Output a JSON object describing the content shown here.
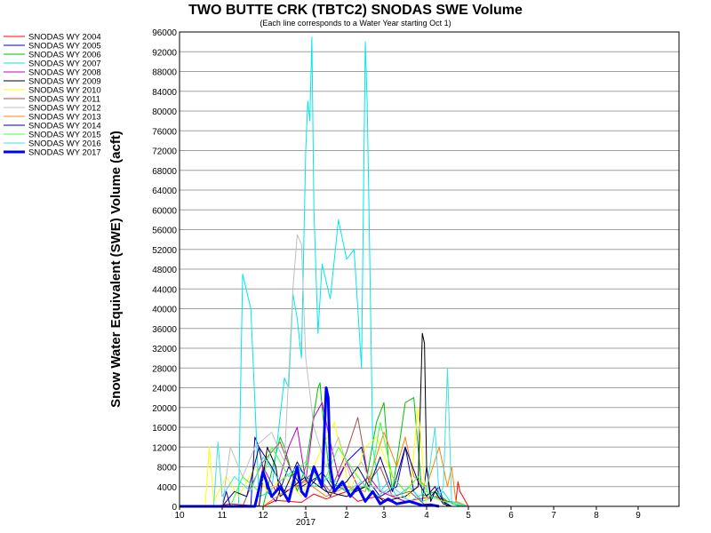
{
  "chart_data": {
    "type": "line",
    "title": "TWO BUTTE CRK (TBTC2) SNODAS SWE Volume",
    "subtitle": "(Each line corresponds to a Water Year starting Oct 1)",
    "ylabel": "Snow Water Equivalent (SWE) Volume (acft)",
    "xlabel": "",
    "ylim": [
      0,
      96000
    ],
    "yticks": [
      "0",
      "4000",
      "8000",
      "12000",
      "16000",
      "20000",
      "24000",
      "28000",
      "32000",
      "36000",
      "40000",
      "44000",
      "48000",
      "52000",
      "56000",
      "60000",
      "64000",
      "68000",
      "72000",
      "76000",
      "80000",
      "84000",
      "88000",
      "92000",
      "96000"
    ],
    "xticks": [
      "10",
      "11",
      "12",
      "1",
      "2",
      "3",
      "4",
      "5",
      "6",
      "7",
      "8",
      "9"
    ],
    "x_year_label": "2017",
    "grid": true,
    "legend_position": "left",
    "series": [
      {
        "name": "SNODAS WY 2004",
        "color": "#ff0000",
        "x": [
          10.0,
          10.8,
          11.2,
          12.0,
          12.3,
          12.9,
          1.2,
          1.5,
          2.0,
          2.3,
          2.8,
          3.3,
          3.8,
          4.2,
          4.5,
          4.7,
          4.75,
          4.8,
          5.0
        ],
        "y": [
          0,
          0,
          500,
          0,
          1200,
          800,
          2500,
          1500,
          3000,
          1000,
          2000,
          500,
          1500,
          2000,
          1000,
          800,
          5000,
          3000,
          0
        ]
      },
      {
        "name": "SNODAS WY 2005",
        "color": "#0000c0",
        "x": [
          10.0,
          11.0,
          11.1,
          11.2,
          11.7,
          11.8,
          11.9,
          12.1,
          12.3,
          12.6,
          12.9,
          1.3,
          1.6,
          2.0,
          2.4,
          2.6,
          2.9,
          3.3,
          3.5,
          3.7,
          3.9,
          4.0,
          4.1,
          4.3,
          4.4,
          4.5
        ],
        "y": [
          0,
          0,
          3000,
          0,
          0,
          14000,
          12000,
          3000,
          1000,
          8000,
          4000,
          6000,
          2000,
          9000,
          12000,
          5000,
          2000,
          4000,
          12000,
          3000,
          1000,
          8000,
          2000,
          4000,
          1000,
          0
        ]
      },
      {
        "name": "SNODAS WY 2006",
        "color": "#00c000",
        "x": [
          10.0,
          12.0,
          12.4,
          12.5,
          12.8,
          1.0,
          1.3,
          1.35,
          1.4,
          1.6,
          2.0,
          2.5,
          2.8,
          3.0,
          3.1,
          3.2,
          3.5,
          3.7,
          3.8,
          3.9,
          4.2,
          4.5,
          4.8
        ],
        "y": [
          0,
          0,
          14000,
          12000,
          3000,
          8000,
          24000,
          25000,
          20000,
          5000,
          3000,
          4000,
          17000,
          21000,
          10000,
          3000,
          21000,
          22000,
          12000,
          2000,
          3000,
          1000,
          0
        ]
      },
      {
        "name": "SNODAS WY 2007",
        "color": "#00e8e8",
        "x": [
          10.0,
          11.4,
          11.5,
          11.7,
          11.9,
          12.2,
          12.5,
          12.6,
          12.7,
          12.8,
          12.9,
          1.0,
          1.05,
          1.1,
          1.15,
          1.2,
          1.3,
          1.4,
          1.6,
          1.8,
          2.0,
          2.2,
          2.4,
          2.5,
          2.55,
          2.6,
          2.7,
          2.9,
          3.1,
          3.3,
          3.6,
          3.9,
          4.2,
          4.4,
          4.6,
          4.8,
          5.0
        ],
        "y": [
          0,
          0,
          47000,
          40000,
          2000,
          3000,
          26000,
          24000,
          43000,
          38000,
          30000,
          72000,
          82000,
          78000,
          95000,
          60000,
          35000,
          49000,
          42000,
          58000,
          50000,
          52000,
          28000,
          94000,
          82000,
          60000,
          12000,
          3000,
          5000,
          2000,
          4000,
          1000,
          2000,
          3000,
          500,
          200,
          0
        ]
      },
      {
        "name": "SNODAS WY 2008",
        "color": "#c000c0",
        "x": [
          10.0,
          11.8,
          12.0,
          12.3,
          12.6,
          12.8,
          1.0,
          1.2,
          1.4,
          1.6,
          1.8,
          2.0,
          2.3,
          2.6,
          2.9,
          3.2,
          3.5,
          3.8,
          4.2
        ],
        "y": [
          0,
          0,
          8000,
          3000,
          12000,
          16000,
          5000,
          18000,
          21000,
          13000,
          6000,
          9000,
          4000,
          6000,
          3000,
          2000,
          1000,
          500,
          0
        ]
      },
      {
        "name": "SNODAS WY 2009",
        "color": "#000000",
        "x": [
          10.0,
          11.9,
          12.1,
          12.3,
          12.4,
          12.7,
          1.0,
          1.5,
          2.0,
          2.5,
          3.0,
          3.5,
          3.8,
          3.9,
          3.95,
          4.0,
          4.1,
          4.2,
          4.4,
          4.6
        ],
        "y": [
          0,
          0,
          12000,
          8000,
          2000,
          4000,
          6000,
          3000,
          2000,
          4000,
          1000,
          2000,
          4000,
          35000,
          33000,
          8000,
          1000,
          3000,
          500,
          0
        ]
      },
      {
        "name": "SNODAS WY 2010",
        "color": "#ffff00",
        "x": [
          10.0,
          10.6,
          10.7,
          10.8,
          11.1,
          11.4,
          11.8,
          12.1,
          12.5,
          12.9,
          1.3,
          1.7,
          2.1,
          2.5,
          2.8,
          3.2,
          3.6,
          3.8,
          4.0
        ],
        "y": [
          0,
          0,
          12000,
          1000,
          6000,
          2000,
          8000,
          3000,
          6000,
          2000,
          10000,
          17000,
          3000,
          12000,
          14000,
          6000,
          2000,
          20000,
          0
        ]
      },
      {
        "name": "SNODAS WY 2011",
        "color": "#a05050",
        "x": [
          10.0,
          11.5,
          11.7,
          12.0,
          12.4,
          12.8,
          1.2,
          1.6,
          2.0,
          2.3,
          2.6,
          2.9,
          3.2,
          3.6,
          4.0
        ],
        "y": [
          0,
          0,
          4000,
          9000,
          13000,
          4000,
          7000,
          3000,
          11000,
          18000,
          5000,
          8000,
          2000,
          3000,
          0
        ]
      },
      {
        "name": "SNODAS WY 2012",
        "color": "#c0c0c0",
        "x": [
          10.0,
          11.0,
          11.2,
          11.5,
          11.8,
          12.2,
          12.5,
          12.7,
          12.8,
          12.9,
          1.0,
          1.2,
          1.5,
          1.8,
          2.1,
          2.4,
          2.7,
          3.0,
          3.3,
          3.7,
          4.0
        ],
        "y": [
          0,
          0,
          12000,
          6000,
          12000,
          15000,
          9000,
          44000,
          55000,
          53000,
          30000,
          16000,
          8000,
          14000,
          6000,
          9000,
          4000,
          3000,
          2000,
          1000,
          0
        ]
      },
      {
        "name": "SNODAS WY 2013",
        "color": "#ff8000",
        "x": [
          10.0,
          12.0,
          12.5,
          1.0,
          1.5,
          2.0,
          2.5,
          3.0,
          3.3,
          3.5,
          3.7,
          4.0,
          4.3,
          4.5,
          4.6,
          4.7,
          5.0
        ],
        "y": [
          0,
          0,
          3000,
          5000,
          2000,
          4000,
          3000,
          15000,
          8000,
          14000,
          6000,
          4000,
          12000,
          4000,
          8000,
          1000,
          0
        ]
      },
      {
        "name": "SNODAS WY 2014",
        "color": "#000080",
        "x": [
          10.0,
          11.0,
          11.3,
          11.6,
          11.9,
          12.2,
          12.5,
          12.8,
          1.1,
          1.4,
          1.7,
          2.0,
          2.3,
          2.6,
          2.9,
          3.2,
          3.5,
          3.8,
          4.0,
          4.2,
          4.4,
          4.6
        ],
        "y": [
          0,
          0,
          3000,
          2000,
          12000,
          8000,
          3000,
          9000,
          4000,
          7000,
          3000,
          5000,
          8000,
          4000,
          10000,
          3000,
          12000,
          5000,
          2000,
          4000,
          1000,
          0
        ]
      },
      {
        "name": "SNODAS WY 2015",
        "color": "#40ff40",
        "x": [
          10.0,
          11.2,
          11.5,
          11.9,
          12.2,
          12.6,
          1.0,
          1.4,
          1.8,
          2.2,
          2.6,
          2.9,
          3.2,
          3.5,
          3.8,
          4.1,
          4.4,
          4.7,
          5.0
        ],
        "y": [
          0,
          0,
          6000,
          3000,
          12000,
          6000,
          9000,
          4000,
          12000,
          7000,
          3000,
          17000,
          6000,
          3000,
          6000,
          2000,
          1000,
          500,
          0
        ]
      },
      {
        "name": "SNODAS WY 2016",
        "color": "#40e0e0",
        "x": [
          10.0,
          10.8,
          10.9,
          11.0,
          11.3,
          11.7,
          12.0,
          12.4,
          12.8,
          1.2,
          1.6,
          2.0,
          2.4,
          2.8,
          3.2,
          3.6,
          4.0,
          4.2,
          4.3,
          4.4,
          4.5,
          4.6,
          4.8,
          5.0
        ],
        "y": [
          0,
          0,
          13000,
          2000,
          6000,
          3000,
          10000,
          5000,
          8000,
          4000,
          6000,
          3000,
          5000,
          2000,
          4000,
          1000,
          3000,
          16000,
          2000,
          4000,
          28000,
          1000,
          500,
          0
        ]
      },
      {
        "name": "SNODAS WY 2017",
        "color": "#0000ff",
        "bold": true,
        "x": [
          10.0,
          11.8,
          12.0,
          12.2,
          12.4,
          12.6,
          12.8,
          12.9,
          1.0,
          1.2,
          1.4,
          1.5,
          1.55,
          1.6,
          1.7,
          1.9,
          2.1,
          2.3,
          2.5,
          2.7,
          2.9,
          3.1,
          3.3,
          3.6,
          3.9,
          4.1,
          4.3
        ],
        "y": [
          0,
          0,
          7000,
          2000,
          4000,
          1000,
          8000,
          3000,
          2000,
          8000,
          4000,
          24000,
          22000,
          8000,
          3000,
          5000,
          2000,
          4000,
          1000,
          3000,
          500,
          1500,
          500,
          1000,
          200,
          300,
          0
        ]
      }
    ]
  }
}
